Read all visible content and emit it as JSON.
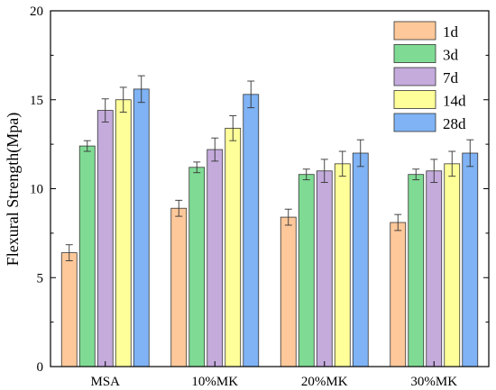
{
  "chart_data": {
    "type": "bar",
    "title": "",
    "xlabel": "",
    "ylabel": "Flexural Strength(Mpa)",
    "ylim": [
      0,
      20
    ],
    "yticks": [
      "0",
      "5",
      "10",
      "15",
      "20"
    ],
    "grid": false,
    "legend_position": "top-right",
    "error_bars": true,
    "categories": [
      "MSA",
      "10%MK",
      "20%MK",
      "30%MK"
    ],
    "series": [
      {
        "name": "1d",
        "color": "#FFC89A",
        "values": [
          6.4,
          8.9,
          8.4,
          8.1
        ],
        "errors": [
          0.45,
          0.45,
          0.45,
          0.45
        ]
      },
      {
        "name": "3d",
        "color": "#7FDB94",
        "values": [
          12.4,
          11.2,
          10.8,
          10.8
        ],
        "errors": [
          0.3,
          0.3,
          0.3,
          0.3
        ]
      },
      {
        "name": "7d",
        "color": "#C4ABDC",
        "values": [
          14.4,
          12.2,
          11.0,
          11.0
        ],
        "errors": [
          0.65,
          0.65,
          0.65,
          0.65
        ]
      },
      {
        "name": "14d",
        "color": "#FFFF99",
        "values": [
          15.0,
          13.4,
          11.4,
          11.4
        ],
        "errors": [
          0.7,
          0.7,
          0.7,
          0.7
        ]
      },
      {
        "name": "28d",
        "color": "#7FB3F5",
        "values": [
          15.6,
          15.3,
          12.0,
          12.0
        ],
        "errors": [
          0.75,
          0.75,
          0.75,
          0.75
        ]
      }
    ]
  }
}
